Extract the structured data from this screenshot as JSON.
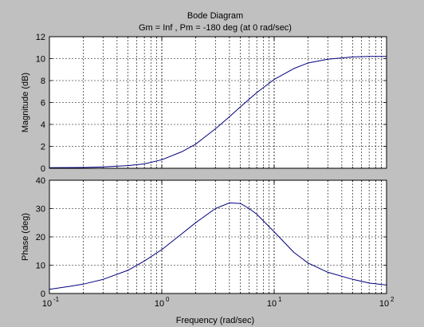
{
  "colors": {
    "figure_bg": "#c0c0c0",
    "axes_bg": "#ffffff",
    "line": "#00007f",
    "grid": "#000000"
  },
  "title": "Bode Diagram",
  "subtitle": "Gm = Inf ,  Pm = -180 deg (at 0 rad/sec)",
  "xlabel": "Frequency  (rad/sec)",
  "chart_data": [
    {
      "type": "line",
      "title": "Bode Diagram",
      "subtitle": "Gm = Inf ,  Pm = -180 deg (at 0 rad/sec)",
      "xlabel": "",
      "ylabel": "Magnitude (dB)",
      "xscale": "log",
      "xlim": [
        0.1,
        100
      ],
      "ylim": [
        0,
        12
      ],
      "yticks": [
        0,
        2,
        4,
        6,
        8,
        10,
        12
      ],
      "xticks": [],
      "grid": true,
      "series": [
        {
          "x": [
            0.1,
            0.2,
            0.3,
            0.5,
            0.7,
            1,
            1.5,
            2,
            3,
            4,
            5,
            7,
            10,
            15,
            20,
            30,
            50,
            70,
            100
          ],
          "y": [
            0.05,
            0.07,
            0.12,
            0.25,
            0.4,
            0.78,
            1.5,
            2.2,
            3.6,
            4.7,
            5.6,
            6.9,
            8.1,
            9.1,
            9.6,
            9.95,
            10.15,
            10.2,
            10.2
          ]
        }
      ]
    },
    {
      "type": "line",
      "xlabel": "Frequency  (rad/sec)",
      "ylabel": "Phase (deg)",
      "xscale": "log",
      "xlim": [
        0.1,
        100
      ],
      "ylim": [
        0,
        40
      ],
      "yticks": [
        0,
        10,
        20,
        30,
        40
      ],
      "xticks": [
        "10",
        "10",
        "10",
        "10"
      ],
      "xtick_exponents": [
        "-1",
        "0",
        "1",
        "2"
      ],
      "grid": true,
      "series": [
        {
          "x": [
            0.1,
            0.15,
            0.2,
            0.3,
            0.5,
            0.7,
            1,
            1.5,
            2,
            3,
            4,
            5,
            6,
            7,
            10,
            15,
            20,
            30,
            50,
            70,
            100
          ],
          "y": [
            1.5,
            2.5,
            3.3,
            5,
            8.2,
            11.5,
            15.5,
            21,
            25,
            30,
            32,
            31.8,
            30,
            28,
            21.8,
            14.5,
            10.8,
            7.5,
            5,
            3.7,
            3
          ]
        }
      ]
    }
  ]
}
